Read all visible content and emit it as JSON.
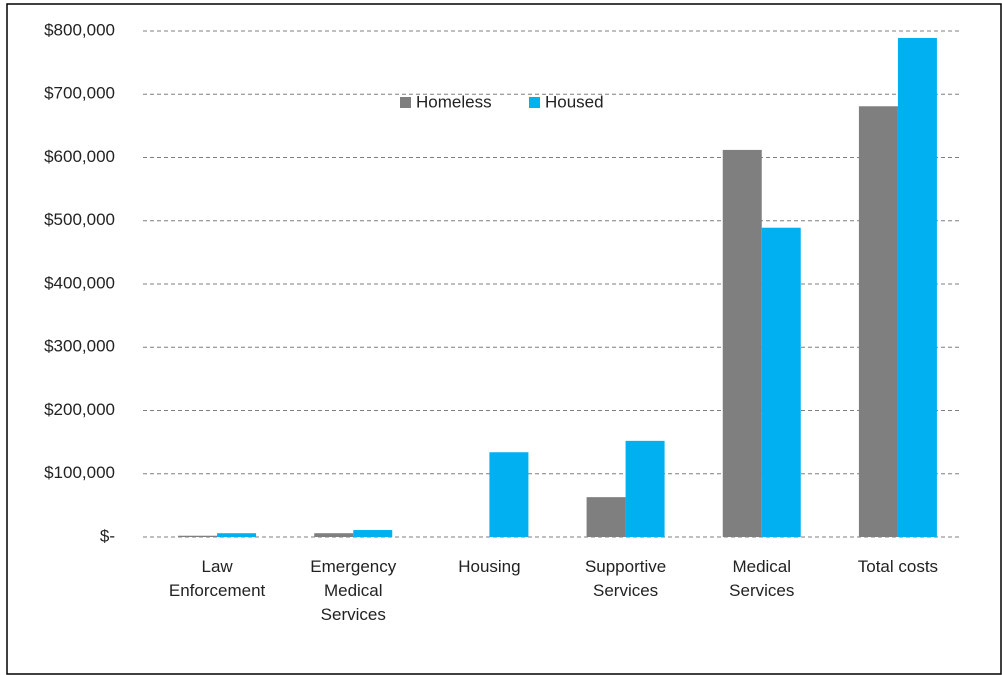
{
  "chart_data": {
    "type": "bar",
    "categories": [
      "Law Enforcement",
      "Emergency Medical Services",
      "Housing",
      "Supportive Services",
      "Medical Services",
      "Total costs"
    ],
    "series": [
      {
        "name": "Homeless",
        "color": "#7f7f7f",
        "values": [
          2000,
          6000,
          0,
          63000,
          612000,
          681000
        ]
      },
      {
        "name": "Housed",
        "color": "#00b0f0",
        "values": [
          6000,
          11000,
          134000,
          152000,
          489000,
          789000
        ]
      }
    ],
    "ylim": [
      0,
      800000
    ],
    "yticks": [
      {
        "value": 0,
        "label": "$-"
      },
      {
        "value": 100000,
        "label": "$100,000"
      },
      {
        "value": 200000,
        "label": "$200,000"
      },
      {
        "value": 300000,
        "label": "$300,000"
      },
      {
        "value": 400000,
        "label": "$400,000"
      },
      {
        "value": 500000,
        "label": "$500,000"
      },
      {
        "value": 600000,
        "label": "$600,000"
      },
      {
        "value": 700000,
        "label": "$700,000"
      },
      {
        "value": 800000,
        "label": "$800,000"
      }
    ],
    "grid": true,
    "legend": "top"
  }
}
